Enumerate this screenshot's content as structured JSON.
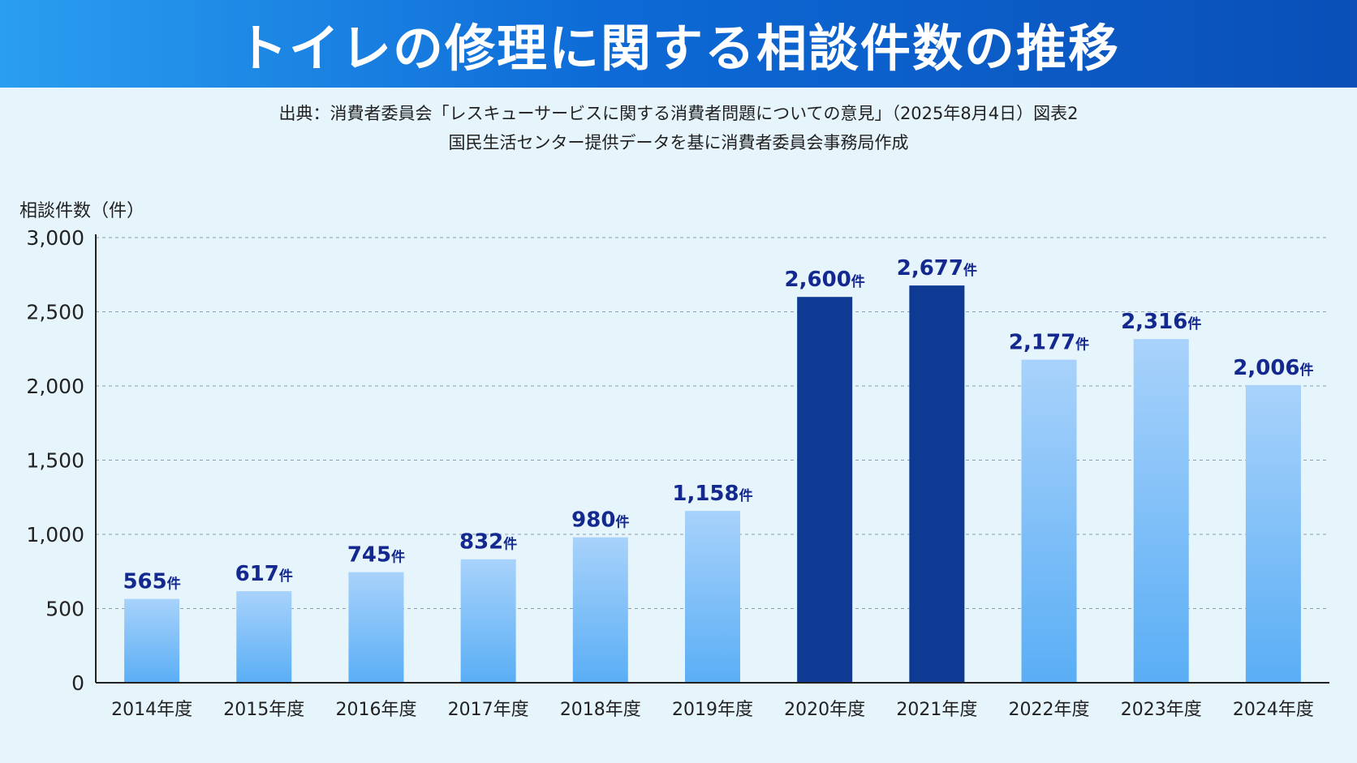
{
  "title": "トイレの修理に関する相談件数の推移",
  "source_line1": "出典：消費者委員会「レスキューサービスに関する消費者問題についての意見」（2025年8月4日）図表2",
  "source_line2": "国民生活センター提供データを基に消費者委員会事務局作成",
  "colors": {
    "title_bar_start": "#2a9ef0",
    "title_bar_end": "#0a4fb8",
    "background": "#e6f4fc",
    "bar_light_top": "#a8d2fb",
    "bar_light_bottom": "#5aaef5",
    "bar_dark": "#0e3a94",
    "data_label": "#14298f"
  },
  "chart_data": {
    "type": "bar",
    "ylabel": "相談件数（件）",
    "ylim": [
      0,
      3000
    ],
    "yticks": [
      0,
      500,
      1000,
      1500,
      2000,
      2500,
      3000
    ],
    "ytick_labels": [
      "0",
      "500",
      "1,000",
      "1,500",
      "2,000",
      "2,500",
      "3,000"
    ],
    "grid": true,
    "categories": [
      "2014年度",
      "2015年度",
      "2016年度",
      "2017年度",
      "2018年度",
      "2019年度",
      "2020年度",
      "2021年度",
      "2022年度",
      "2023年度",
      "2024年度"
    ],
    "values": [
      565,
      617,
      745,
      832,
      980,
      1158,
      2600,
      2677,
      2177,
      2316,
      2006
    ],
    "value_labels": [
      "565",
      "617",
      "745",
      "832",
      "980",
      "1,158",
      "2,600",
      "2,677",
      "2,177",
      "2,316",
      "2,006"
    ],
    "value_unit": "件",
    "highlighted": [
      false,
      false,
      false,
      false,
      false,
      false,
      true,
      true,
      false,
      false,
      false
    ]
  }
}
